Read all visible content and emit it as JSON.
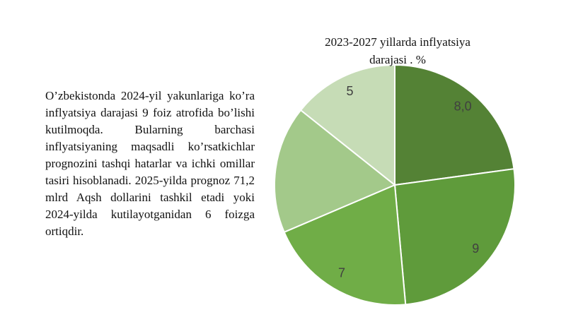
{
  "body_text": "O’zbekistonda 2024-yil yakunlariga ko’ra inflyatsiya darajasi 9 foiz atrofida bo’lishi kutilmoqda. Bularning barchasi inflyatsiyaning maqsadli ko’rsatkichlar prognozini tashqi hatarlar va ichki omillar tasiri hisoblanadi. 2025-yilda prognoz 71,2 mlrd Aqsh dollarini tashkil etadi yoki 2024-yilda kutilayotganidan 6 foizga ortiqdir.",
  "chart_data": {
    "type": "pie",
    "title": "2023-2027 yillarda inflyatsiya darajasi . %",
    "values": [
      8,
      9,
      7,
      6,
      5
    ],
    "value_labels": [
      "8,0",
      "9",
      "7",
      null,
      "5"
    ],
    "colors": [
      "#548235",
      "#5f9b3b",
      "#70ad47",
      "#a3c98a",
      "#c6dcb6"
    ]
  }
}
